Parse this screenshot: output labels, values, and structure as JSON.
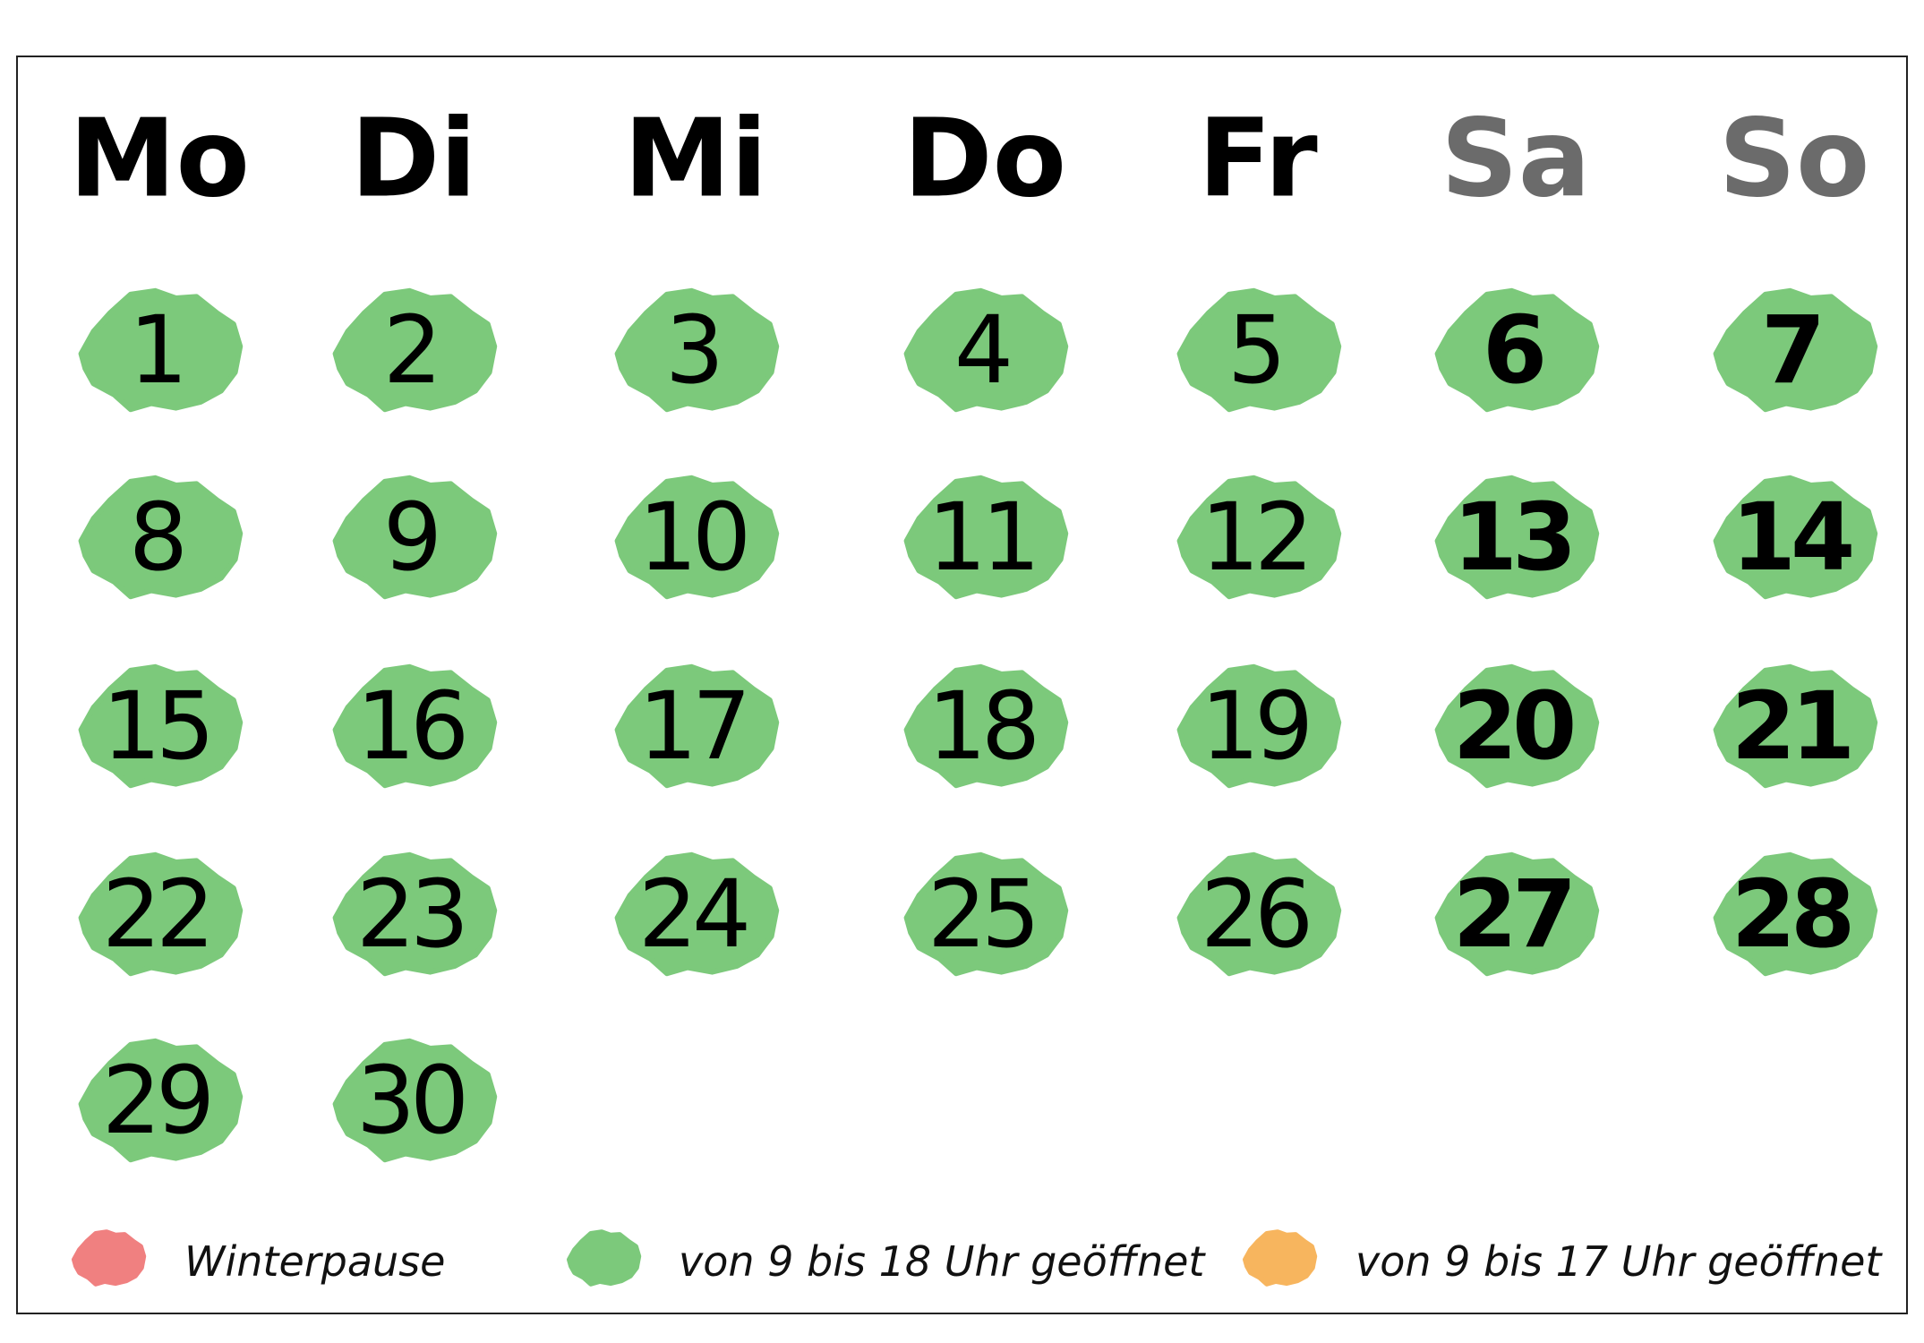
{
  "weekdays": [
    "Mo",
    "Di",
    "Mi",
    "Do",
    "Fr",
    "Sa",
    "So"
  ],
  "days": [
    1,
    2,
    3,
    4,
    5,
    6,
    7,
    8,
    9,
    10,
    11,
    12,
    13,
    14,
    15,
    16,
    17,
    18,
    19,
    20,
    21,
    22,
    23,
    24,
    25,
    26,
    27,
    28,
    29,
    30
  ],
  "day_color": "#7cc97b",
  "legend": [
    {
      "label": "Winterpause",
      "color": "#f08080"
    },
    {
      "label": "von 9 bis 18 Uhr geöffnet",
      "color": "#7cc97b"
    },
    {
      "label": "von 9 bis 17 Uhr geöffnet",
      "color": "#f7b55e"
    }
  ]
}
